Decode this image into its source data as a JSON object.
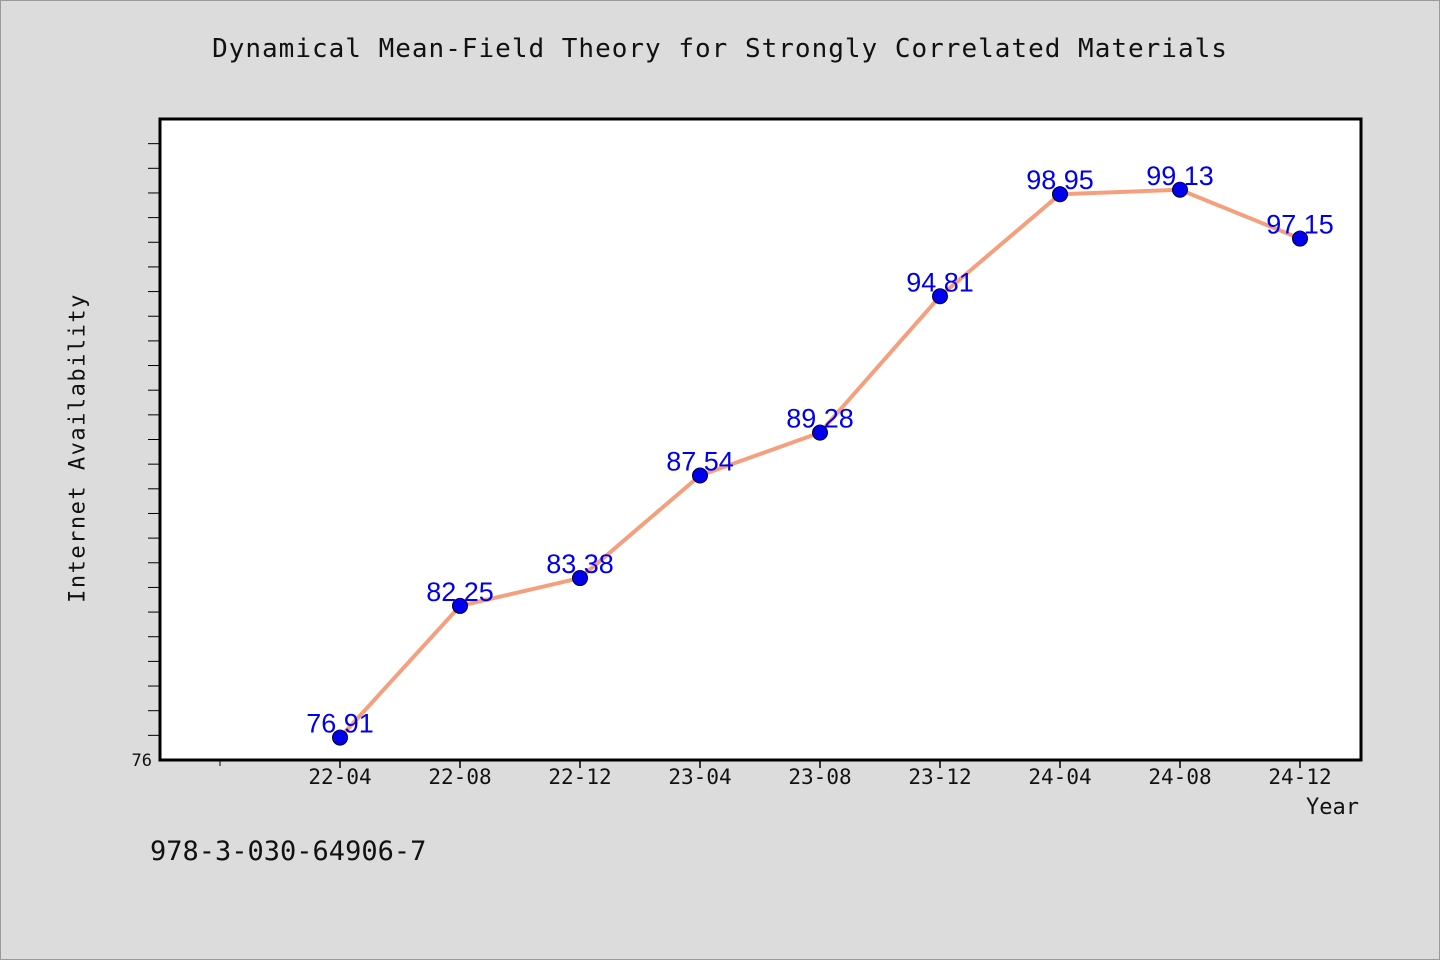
{
  "chart_data": {
    "type": "line",
    "title": "Dynamical Mean-Field Theory for Strongly Correlated Materials",
    "xlabel": "Year",
    "ylabel": "Internet Availability",
    "categories": [
      "22-04",
      "22-08",
      "22-12",
      "23-04",
      "23-08",
      "23-12",
      "24-04",
      "24-08",
      "24-12"
    ],
    "values": [
      76.91,
      82.25,
      83.38,
      87.54,
      89.28,
      94.81,
      98.95,
      99.13,
      97.15
    ],
    "data_labels": [
      "76.91",
      "82.25",
      "83.38",
      "87.54",
      "89.28",
      "94.81",
      "98.95",
      "99.13",
      "97.15"
    ],
    "y_tick_labels": [
      "76"
    ],
    "ylim": [
      76,
      102
    ],
    "line_color": "#f4a07e",
    "marker_color": "#0000ee",
    "label_color": "#0000ee",
    "grid": false,
    "legend": "none"
  },
  "footer": {
    "isbn": "978-3-030-64906-7"
  }
}
